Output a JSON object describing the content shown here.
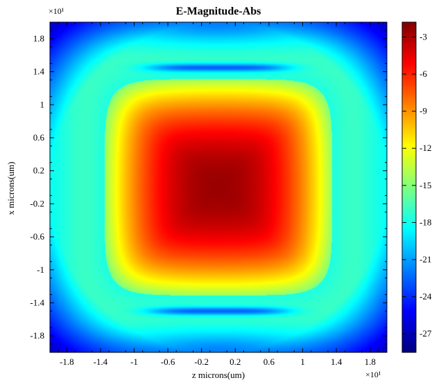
{
  "chart_data": {
    "type": "heatmap",
    "title": "E-Magnitude-Abs",
    "xlabel": "z microns(um)",
    "ylabel": "x microns(um)",
    "x_multiplier": "×10¹",
    "y_multiplier": "×10¹",
    "xlim": [
      -2.0,
      2.0
    ],
    "ylim": [
      -2.0,
      2.0
    ],
    "x_ticks": [
      "-1.8",
      "-1.4",
      "-1",
      "-0.6",
      "-0.2",
      "0.2",
      "0.6",
      "1",
      "1.4",
      "1.8"
    ],
    "y_ticks": [
      "1.8",
      "1.4",
      "1",
      "0.6",
      "0.2",
      "-0.2",
      "-0.6",
      "-1",
      "-1.4",
      "-1.8"
    ],
    "colorbar": {
      "ticks": [
        "-3",
        "-6",
        "-9",
        "-12",
        "-15",
        "-18",
        "-21",
        "-24",
        "-27"
      ],
      "range": [
        -28.5,
        -1.8
      ],
      "colormap": "jet"
    },
    "field": {
      "description_free": true,
      "peak_value": -2.5,
      "peak_center": [
        0.0,
        0.0
      ],
      "background_value": -18.5,
      "ring_radius": 1.35,
      "dark_band_x": [
        1.45,
        -1.5
      ],
      "corner_value": -27
    },
    "grid": false
  }
}
